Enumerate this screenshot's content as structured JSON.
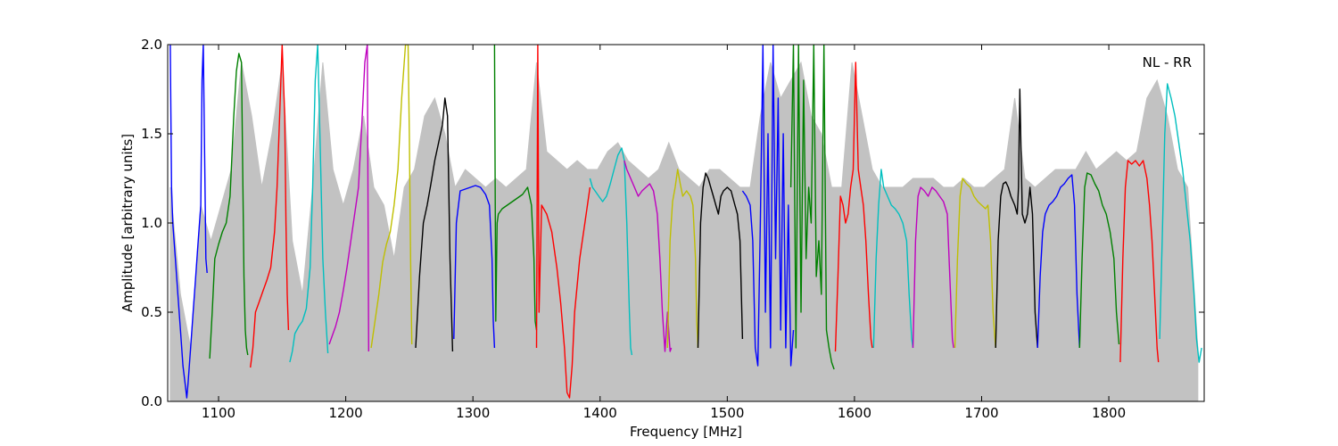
{
  "chart_data": {
    "type": "line",
    "title": "",
    "annotation": "NL - RR",
    "xlabel": "Frequency [MHz]",
    "ylabel": "Amplitude [arbitrary units]",
    "xlim": [
      1060,
      1875
    ],
    "ylim": [
      0.0,
      2.0
    ],
    "x_ticks": [
      "1100",
      "1200",
      "1300",
      "1400",
      "1500",
      "1600",
      "1700",
      "1800"
    ],
    "y_ticks": [
      "0.0",
      "0.5",
      "1.0",
      "1.5",
      "2.0"
    ],
    "grid": false,
    "envelope": {
      "color": "#bfbfbf",
      "x": [
        1062,
        1070,
        1078,
        1086,
        1094,
        1102,
        1110,
        1118,
        1126,
        1134,
        1142,
        1150,
        1158,
        1166,
        1174,
        1182,
        1190,
        1198,
        1206,
        1214,
        1222,
        1230,
        1238,
        1246,
        1254,
        1262,
        1270,
        1278,
        1286,
        1294,
        1302,
        1310,
        1318,
        1326,
        1334,
        1342,
        1350,
        1358,
        1366,
        1374,
        1382,
        1390,
        1398,
        1406,
        1414,
        1422,
        1430,
        1438,
        1446,
        1454,
        1462,
        1470,
        1478,
        1486,
        1494,
        1502,
        1510,
        1518,
        1526,
        1534,
        1542,
        1550,
        1558,
        1566,
        1574,
        1582,
        1590,
        1598,
        1606,
        1614,
        1622,
        1630,
        1638,
        1646,
        1654,
        1662,
        1670,
        1678,
        1686,
        1694,
        1702,
        1710,
        1718,
        1726,
        1734,
        1742,
        1750,
        1758,
        1766,
        1774,
        1782,
        1790,
        1798,
        1806,
        1814,
        1822,
        1830,
        1838,
        1846,
        1854,
        1862,
        1870
      ],
      "y": [
        1.2,
        0.6,
        0.3,
        1.1,
        0.9,
        1.1,
        1.3,
        1.9,
        1.6,
        1.2,
        1.5,
        1.9,
        0.9,
        0.6,
        1.2,
        1.9,
        1.3,
        1.1,
        1.3,
        1.6,
        1.2,
        1.1,
        0.8,
        1.2,
        1.3,
        1.6,
        1.7,
        1.5,
        1.2,
        1.3,
        1.25,
        1.2,
        1.25,
        1.2,
        1.25,
        1.3,
        1.9,
        1.4,
        1.35,
        1.3,
        1.35,
        1.3,
        1.3,
        1.4,
        1.45,
        1.35,
        1.3,
        1.25,
        1.3,
        1.45,
        1.3,
        1.25,
        1.2,
        1.3,
        1.3,
        1.25,
        1.2,
        1.2,
        1.6,
        1.9,
        1.7,
        1.8,
        1.9,
        1.6,
        1.5,
        1.2,
        1.2,
        1.9,
        1.6,
        1.3,
        1.2,
        1.2,
        1.2,
        1.25,
        1.25,
        1.25,
        1.2,
        1.2,
        1.25,
        1.2,
        1.2,
        1.25,
        1.3,
        1.7,
        1.25,
        1.2,
        1.25,
        1.3,
        1.3,
        1.3,
        1.4,
        1.3,
        1.35,
        1.4,
        1.35,
        1.4,
        1.7,
        1.8,
        1.6,
        1.3,
        1.2,
        0.3
      ]
    },
    "series": [
      {
        "color": "#0000ff",
        "x": [
          1062,
          1063,
          1064,
          1066,
          1068,
          1070,
          1072,
          1074,
          1075,
          1076,
          1078,
          1080,
          1082,
          1084,
          1086,
          1087,
          1088,
          1090,
          1091
        ],
        "y": [
          2.0,
          1.2,
          1.0,
          0.8,
          0.6,
          0.4,
          0.2,
          0.08,
          0.02,
          0.1,
          0.3,
          0.5,
          0.7,
          0.9,
          1.1,
          1.8,
          2.0,
          0.8,
          0.72
        ]
      },
      {
        "color": "#008000",
        "x": [
          1093,
          1095,
          1097,
          1100,
          1103,
          1106,
          1109,
          1112,
          1114,
          1116,
          1118,
          1119,
          1120,
          1121,
          1122,
          1123
        ],
        "y": [
          0.24,
          0.5,
          0.8,
          0.88,
          0.95,
          1.0,
          1.15,
          1.6,
          1.85,
          1.95,
          1.9,
          1.3,
          0.7,
          0.4,
          0.3,
          0.26
        ]
      },
      {
        "color": "#ff0000",
        "x": [
          1125,
          1127,
          1129,
          1132,
          1135,
          1138,
          1141,
          1144,
          1146,
          1148,
          1150,
          1152,
          1153,
          1154,
          1155
        ],
        "y": [
          0.19,
          0.3,
          0.5,
          0.56,
          0.62,
          0.68,
          0.75,
          0.95,
          1.2,
          1.6,
          2.0,
          1.6,
          1.0,
          0.6,
          0.4
        ]
      },
      {
        "color": "#00bfbf",
        "x": [
          1156,
          1158,
          1160,
          1163,
          1166,
          1169,
          1172,
          1174,
          1176,
          1178,
          1180,
          1182,
          1184,
          1186
        ],
        "y": [
          0.22,
          0.28,
          0.38,
          0.42,
          0.45,
          0.52,
          0.75,
          1.2,
          1.8,
          2.0,
          1.4,
          0.8,
          0.5,
          0.27
        ]
      },
      {
        "color": "#bf00bf",
        "x": [
          1187,
          1189,
          1192,
          1195,
          1198,
          1201,
          1204,
          1207,
          1210,
          1213,
          1215,
          1217,
          1218
        ],
        "y": [
          0.32,
          0.36,
          0.42,
          0.5,
          0.62,
          0.75,
          0.9,
          1.05,
          1.2,
          1.6,
          1.9,
          2.0,
          0.28
        ]
      },
      {
        "color": "#bfbf00",
        "x": [
          1220,
          1223,
          1226,
          1229,
          1232,
          1235,
          1238,
          1241,
          1244,
          1247,
          1249,
          1250,
          1251,
          1252
        ],
        "y": [
          0.3,
          0.45,
          0.6,
          0.78,
          0.88,
          0.95,
          1.1,
          1.3,
          1.7,
          2.0,
          2.0,
          1.5,
          0.8,
          0.32
        ]
      },
      {
        "color": "#000000",
        "x": [
          1255,
          1258,
          1261,
          1264,
          1267,
          1270,
          1273,
          1276,
          1278,
          1280,
          1282,
          1284
        ],
        "y": [
          0.3,
          0.7,
          1.0,
          1.1,
          1.22,
          1.35,
          1.45,
          1.55,
          1.7,
          1.6,
          0.8,
          0.28
        ]
      },
      {
        "color": "#0000ff",
        "x": [
          1285,
          1287,
          1290,
          1294,
          1298,
          1302,
          1306,
          1310,
          1313,
          1315,
          1316,
          1317
        ],
        "y": [
          0.35,
          1.0,
          1.18,
          1.19,
          1.2,
          1.21,
          1.2,
          1.16,
          1.1,
          0.8,
          0.45,
          0.3
        ]
      },
      {
        "color": "#008000",
        "x": [
          1317,
          1318,
          1319,
          1320,
          1323,
          1327,
          1331,
          1335,
          1339,
          1343,
          1346,
          1348,
          1349,
          1350
        ],
        "y": [
          2.0,
          0.45,
          1.0,
          1.05,
          1.08,
          1.1,
          1.12,
          1.14,
          1.16,
          1.2,
          1.1,
          0.8,
          0.45,
          0.4
        ]
      },
      {
        "color": "#ff0000",
        "x": [
          1350,
          1351,
          1352,
          1354,
          1358,
          1362,
          1366,
          1369,
          1372,
          1374,
          1376,
          1378,
          1380,
          1384,
          1388,
          1392
        ],
        "y": [
          0.3,
          2.0,
          0.5,
          1.1,
          1.05,
          0.95,
          0.75,
          0.55,
          0.3,
          0.05,
          0.02,
          0.2,
          0.5,
          0.8,
          1.0,
          1.2
        ]
      },
      {
        "color": "#00bfbf",
        "x": [
          1392,
          1394,
          1396,
          1399,
          1402,
          1405,
          1408,
          1411,
          1414,
          1417,
          1419,
          1421,
          1423,
          1424,
          1425
        ],
        "y": [
          1.25,
          1.2,
          1.18,
          1.15,
          1.12,
          1.15,
          1.22,
          1.3,
          1.38,
          1.42,
          1.35,
          1.0,
          0.5,
          0.3,
          0.26
        ]
      },
      {
        "color": "#bf00bf",
        "x": [
          1419,
          1421,
          1424,
          1427,
          1430,
          1433,
          1436,
          1439,
          1442,
          1445,
          1447,
          1449,
          1451,
          1453,
          1455,
          1456
        ],
        "y": [
          1.35,
          1.3,
          1.25,
          1.2,
          1.15,
          1.18,
          1.2,
          1.22,
          1.18,
          1.05,
          0.8,
          0.5,
          0.28,
          0.5,
          0.28,
          0.3
        ]
      },
      {
        "color": "#bfbf00",
        "x": [
          1453,
          1455,
          1457,
          1459,
          1461,
          1463,
          1465,
          1468,
          1471,
          1473,
          1475,
          1476,
          1477
        ],
        "y": [
          0.3,
          0.9,
          1.12,
          1.2,
          1.3,
          1.22,
          1.15,
          1.18,
          1.15,
          1.1,
          0.8,
          0.45,
          0.3
        ]
      },
      {
        "color": "#000000",
        "x": [
          1477,
          1479,
          1481,
          1483,
          1485,
          1487,
          1489,
          1491,
          1493,
          1495,
          1497,
          1500,
          1503,
          1506,
          1508,
          1510,
          1512
        ],
        "y": [
          0.3,
          1.0,
          1.2,
          1.28,
          1.25,
          1.2,
          1.15,
          1.1,
          1.05,
          1.15,
          1.18,
          1.2,
          1.18,
          1.1,
          1.05,
          0.9,
          0.35
        ]
      },
      {
        "color": "#0000ff",
        "x": [
          1512,
          1515,
          1518,
          1520,
          1522,
          1524,
          1526,
          1528,
          1530,
          1532,
          1534,
          1536,
          1538,
          1540,
          1542,
          1544,
          1546,
          1548,
          1550,
          1552
        ],
        "y": [
          1.18,
          1.15,
          1.1,
          0.9,
          0.3,
          0.2,
          1.0,
          2.0,
          0.5,
          1.5,
          0.3,
          2.0,
          0.8,
          1.7,
          0.4,
          1.5,
          0.3,
          1.1,
          0.2,
          0.4
        ]
      },
      {
        "color": "#008000",
        "x": [
          1550,
          1552,
          1554,
          1556,
          1558,
          1560,
          1562,
          1564,
          1566,
          1568,
          1570,
          1572,
          1574,
          1576,
          1578,
          1580,
          1582,
          1584
        ],
        "y": [
          1.2,
          2.0,
          0.3,
          2.0,
          0.5,
          1.8,
          0.8,
          1.2,
          1.0,
          2.0,
          0.7,
          0.9,
          0.6,
          2.0,
          0.4,
          0.3,
          0.22,
          0.18
        ]
      },
      {
        "color": "#ff0000",
        "x": [
          1585,
          1587,
          1589,
          1591,
          1593,
          1595,
          1597,
          1599,
          1601,
          1603,
          1605,
          1607,
          1609,
          1611,
          1613,
          1614
        ],
        "y": [
          0.28,
          0.7,
          1.15,
          1.1,
          1.0,
          1.05,
          1.2,
          1.3,
          1.9,
          1.3,
          1.2,
          1.1,
          0.9,
          0.6,
          0.35,
          0.3
        ]
      },
      {
        "color": "#00bfbf",
        "x": [
          1615,
          1617,
          1619,
          1621,
          1623,
          1626,
          1629,
          1632,
          1635,
          1638,
          1641,
          1643,
          1645,
          1646
        ],
        "y": [
          0.3,
          0.8,
          1.1,
          1.3,
          1.2,
          1.15,
          1.1,
          1.08,
          1.05,
          1.0,
          0.9,
          0.6,
          0.35,
          0.3
        ]
      },
      {
        "color": "#bf00bf",
        "x": [
          1646,
          1648,
          1650,
          1652,
          1655,
          1658,
          1661,
          1664,
          1667,
          1670,
          1673,
          1675,
          1677,
          1678
        ],
        "y": [
          0.3,
          0.9,
          1.15,
          1.2,
          1.18,
          1.15,
          1.2,
          1.18,
          1.15,
          1.12,
          1.05,
          0.7,
          0.35,
          0.3
        ]
      },
      {
        "color": "#bfbf00",
        "x": [
          1679,
          1681,
          1683,
          1685,
          1688,
          1691,
          1694,
          1697,
          1700,
          1703,
          1705,
          1707,
          1709,
          1711
        ],
        "y": [
          0.3,
          0.8,
          1.15,
          1.25,
          1.22,
          1.2,
          1.15,
          1.12,
          1.1,
          1.08,
          1.1,
          0.9,
          0.5,
          0.3
        ]
      },
      {
        "color": "#000000",
        "x": [
          1711,
          1713,
          1715,
          1717,
          1719,
          1721,
          1723,
          1726,
          1728,
          1729,
          1730,
          1732,
          1734,
          1736,
          1738,
          1740,
          1742,
          1744
        ],
        "y": [
          0.3,
          0.9,
          1.15,
          1.22,
          1.23,
          1.2,
          1.15,
          1.1,
          1.05,
          1.2,
          1.75,
          1.05,
          1.0,
          1.05,
          1.2,
          1.05,
          0.5,
          0.3
        ]
      },
      {
        "color": "#0000ff",
        "x": [
          1744,
          1746,
          1748,
          1750,
          1753,
          1756,
          1759,
          1762,
          1765,
          1768,
          1771,
          1773,
          1775,
          1777
        ],
        "y": [
          0.3,
          0.7,
          0.95,
          1.05,
          1.1,
          1.12,
          1.15,
          1.2,
          1.22,
          1.25,
          1.27,
          1.1,
          0.6,
          0.3
        ]
      },
      {
        "color": "#008000",
        "x": [
          1777,
          1779,
          1781,
          1783,
          1786,
          1789,
          1792,
          1795,
          1798,
          1801,
          1804,
          1806,
          1808
        ],
        "y": [
          0.3,
          0.8,
          1.2,
          1.28,
          1.27,
          1.22,
          1.18,
          1.1,
          1.05,
          0.95,
          0.8,
          0.5,
          0.32
        ]
      },
      {
        "color": "#ff0000",
        "x": [
          1809,
          1811,
          1813,
          1815,
          1818,
          1821,
          1824,
          1827,
          1830,
          1832,
          1834,
          1836,
          1838,
          1839
        ],
        "y": [
          0.22,
          0.8,
          1.2,
          1.35,
          1.33,
          1.35,
          1.32,
          1.35,
          1.25,
          1.1,
          0.9,
          0.6,
          0.3,
          0.22
        ]
      },
      {
        "color": "#00bfbf",
        "x": [
          1840,
          1842,
          1844,
          1846,
          1849,
          1852,
          1855,
          1858,
          1861,
          1864,
          1867,
          1869,
          1871,
          1873
        ],
        "y": [
          0.35,
          0.9,
          1.5,
          1.78,
          1.7,
          1.6,
          1.45,
          1.3,
          1.1,
          0.9,
          0.6,
          0.35,
          0.22,
          0.3
        ]
      }
    ]
  }
}
